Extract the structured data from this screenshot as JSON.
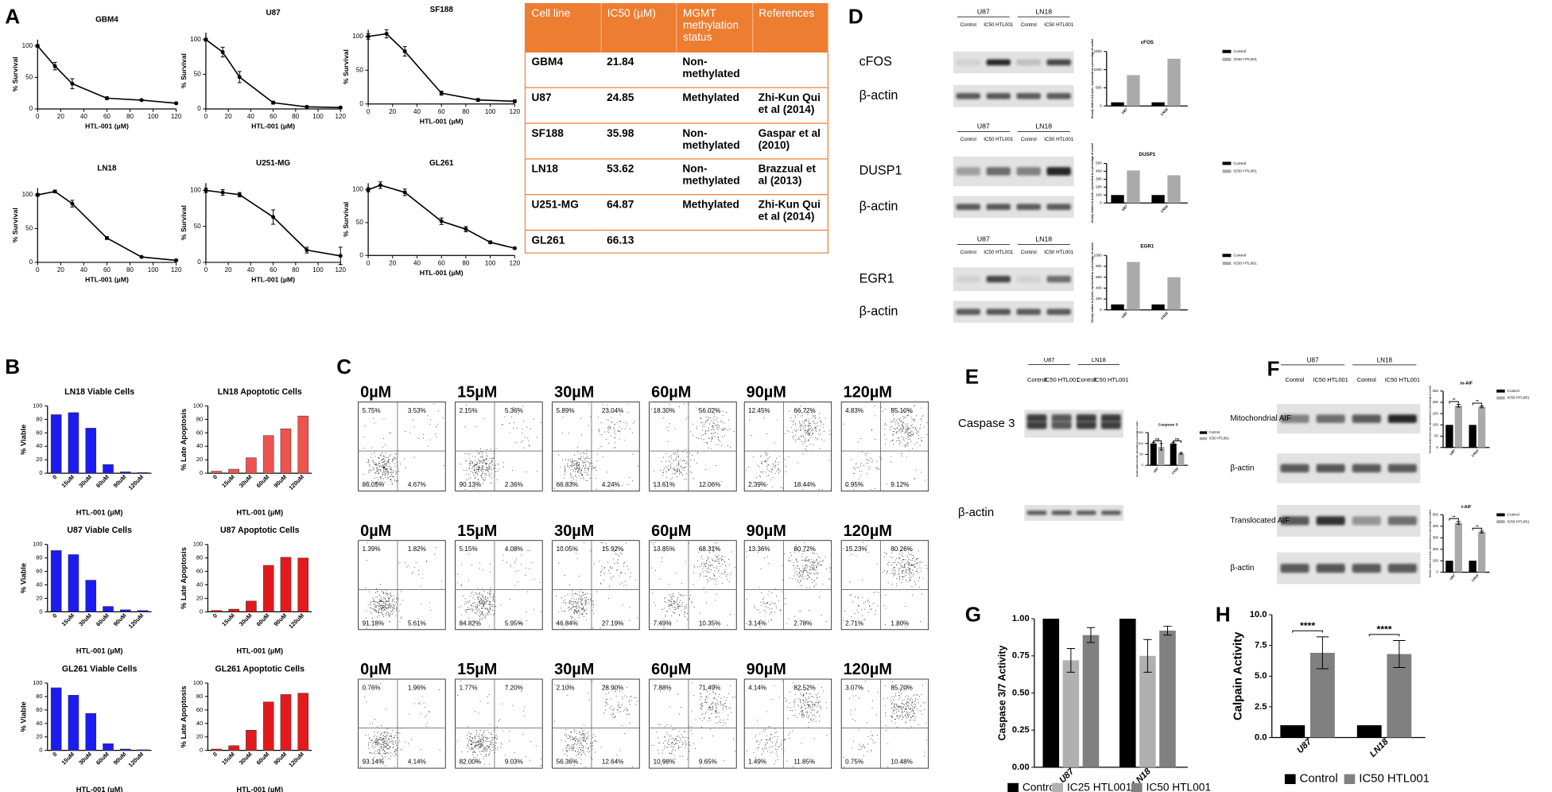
{
  "chart_data": [
    {
      "type": "line",
      "title": "GBM4",
      "x": [
        0,
        15,
        30,
        60,
        90,
        120
      ],
      "values": [
        100,
        68,
        40,
        17,
        14,
        9
      ],
      "errors": [
        2,
        6,
        8,
        2,
        1,
        1
      ],
      "xlabel": "HTL-001 (µM)",
      "ylabel": "% Survival",
      "xlim": [
        0,
        120
      ],
      "ylim": [
        0,
        110
      ],
      "xticks": [
        0,
        20,
        40,
        60,
        80,
        100,
        120
      ],
      "yticks": [
        0,
        50,
        100
      ],
      "color": "#000000"
    },
    {
      "type": "line",
      "title": "U87",
      "x": [
        0,
        15,
        30,
        60,
        90,
        120
      ],
      "values": [
        100,
        82,
        46,
        9,
        3,
        2
      ],
      "errors": [
        2,
        7,
        8,
        2,
        1,
        1
      ],
      "xlabel": "HTL-001 (µM)",
      "ylabel": "% Survival",
      "xlim": [
        0,
        120
      ],
      "ylim": [
        0,
        110
      ],
      "xticks": [
        0,
        20,
        40,
        60,
        80,
        100,
        120
      ],
      "yticks": [
        0,
        50,
        100
      ],
      "color": "#000000"
    },
    {
      "type": "line",
      "title": "SF188",
      "x": [
        0,
        15,
        30,
        60,
        90,
        120
      ],
      "values": [
        100,
        104,
        78,
        16,
        6,
        4
      ],
      "errors": [
        4,
        6,
        7,
        3,
        2,
        2
      ],
      "xlabel": "HTL-001 (µM)",
      "ylabel": "% Survival",
      "xlim": [
        0,
        120
      ],
      "ylim": [
        0,
        110
      ],
      "xticks": [
        0,
        20,
        40,
        60,
        80,
        100,
        120
      ],
      "yticks": [
        0,
        50,
        100
      ],
      "color": "#000000"
    },
    {
      "type": "line",
      "title": "LN18",
      "x": [
        0,
        15,
        30,
        60,
        90,
        120
      ],
      "values": [
        100,
        105,
        87,
        36,
        8,
        3
      ],
      "errors": [
        2,
        2,
        5,
        2,
        1,
        1
      ],
      "xlabel": "HTL-001 (µM)",
      "ylabel": "% Survival",
      "xlim": [
        0,
        120
      ],
      "ylim": [
        0,
        110
      ],
      "xticks": [
        0,
        20,
        40,
        60,
        80,
        100,
        120
      ],
      "yticks": [
        0,
        50,
        100
      ],
      "color": "#000000"
    },
    {
      "type": "line",
      "title": "U251-MG",
      "x": [
        0,
        15,
        30,
        60,
        90,
        120
      ],
      "values": [
        100,
        97,
        94,
        63,
        17,
        9
      ],
      "errors": [
        3,
        4,
        3,
        10,
        4,
        12
      ],
      "xlabel": "HTL-001 (µM)",
      "ylabel": "% Survival",
      "xlim": [
        0,
        120
      ],
      "ylim": [
        0,
        110
      ],
      "xticks": [
        0,
        20,
        40,
        60,
        80,
        100,
        120
      ],
      "yticks": [
        0,
        50,
        100
      ],
      "color": "#000000"
    },
    {
      "type": "line",
      "title": "GL261",
      "x": [
        0,
        10,
        30,
        60,
        80,
        100,
        120
      ],
      "values": [
        100,
        107,
        96,
        52,
        40,
        20,
        11
      ],
      "errors": [
        3,
        5,
        5,
        5,
        4,
        2,
        1
      ],
      "xlabel": "HTL-001 (µM)",
      "ylabel": "% Survival",
      "xlim": [
        0,
        120
      ],
      "ylim": [
        0,
        110
      ],
      "xticks": [
        0,
        20,
        40,
        60,
        80,
        100,
        120
      ],
      "yticks": [
        0,
        50,
        100
      ],
      "color": "#000000"
    },
    {
      "type": "bar",
      "title": "LN18 Viable Cells",
      "categories": [
        "0",
        "15uM",
        "30uM",
        "60uM",
        "90uM",
        "120uM"
      ],
      "values": [
        87,
        90,
        67,
        13,
        2,
        1
      ],
      "color": "#1c1cf0",
      "xlabel": "HTL-001 (µM)",
      "ylabel": "% Viable",
      "ylim": [
        0,
        100
      ],
      "yticks": [
        0,
        20,
        40,
        60,
        80,
        100
      ]
    },
    {
      "type": "bar",
      "title": "LN18  Apoptotic Cells",
      "categories": [
        "0",
        "15uM",
        "30uM",
        "60uM",
        "90uM",
        "120uM"
      ],
      "values": [
        3,
        6,
        23,
        56,
        66,
        85
      ],
      "color": "#ef5350",
      "xlabel": "HTL-001 (µM)",
      "ylabel": "% Late Apoptosis",
      "ylim": [
        0,
        100
      ],
      "yticks": [
        0,
        20,
        40,
        60,
        80,
        100
      ]
    },
    {
      "type": "bar",
      "title": "U87 Viable Cells",
      "categories": [
        "0",
        "15uM",
        "30uM",
        "60uM",
        "90uM",
        "120uM"
      ],
      "values": [
        91,
        85,
        47,
        8,
        3,
        2
      ],
      "color": "#1c1cf0",
      "xlabel": "HTL-001 (µM)",
      "ylabel": "% Viable",
      "ylim": [
        0,
        100
      ],
      "yticks": [
        0,
        20,
        40,
        60,
        80,
        100
      ]
    },
    {
      "type": "bar",
      "title": "U87 Apoptotic Cells",
      "categories": [
        "0",
        "15uM",
        "30uM",
        "60uM",
        "90uM",
        "120uM"
      ],
      "values": [
        2,
        4,
        16,
        69,
        81,
        80
      ],
      "color": "#e31a1c",
      "xlabel": "HTL-001 (µM)",
      "ylabel": "% Late Apoptosis",
      "ylim": [
        0,
        100
      ],
      "yticks": [
        0,
        20,
        40,
        60,
        80,
        100
      ]
    },
    {
      "type": "bar",
      "title": "GL261 Viable Cells",
      "categories": [
        "0",
        "15uM",
        "30uM",
        "60uM",
        "90uM",
        "120uM"
      ],
      "values": [
        93,
        82,
        55,
        10,
        2,
        1
      ],
      "color": "#1c1cf0",
      "xlabel": "HTL-001 (µM)",
      "ylabel": "% Viable",
      "ylim": [
        0,
        100
      ],
      "yticks": [
        0,
        20,
        40,
        60,
        80,
        100
      ]
    },
    {
      "type": "bar",
      "title": "GL261 Apoptotic Cells",
      "categories": [
        "0",
        "15uM",
        "30uM",
        "60uM",
        "90uM",
        "120uM"
      ],
      "values": [
        2,
        7,
        30,
        72,
        83,
        85
      ],
      "color": "#e31a1c",
      "xlabel": "HTL-001 (µM)",
      "ylabel": "% Late Apoptosis",
      "ylim": [
        0,
        100
      ],
      "yticks": [
        0,
        20,
        40,
        60,
        80,
        100
      ]
    },
    {
      "type": "bar",
      "title": "cFOS",
      "categories": [
        "U87",
        "LN18"
      ],
      "series": [
        {
          "name": "Control",
          "color": "#000000",
          "values": [
            100,
            100
          ]
        },
        {
          "name": "IC50 HTL001",
          "color": "#aaaaaa",
          "values": [
            850,
            1300
          ]
        }
      ],
      "ylabel": "Density relative to β-actin, represented as a percentage of control",
      "ylim": [
        0,
        1500
      ],
      "yticks": [
        0,
        500,
        1000,
        1500
      ],
      "legend": "right"
    },
    {
      "type": "bar",
      "title": "DUSP1",
      "categories": [
        "U87",
        "LN18"
      ],
      "series": [
        {
          "name": "Control",
          "color": "#000000",
          "values": [
            100,
            100
          ]
        },
        {
          "name": "IC50 HTL001",
          "color": "#aaaaaa",
          "values": [
            410,
            350
          ]
        }
      ],
      "ylabel": "Density relative to β-actin, represented as a percentage of control",
      "ylim": [
        0,
        500
      ],
      "yticks": [
        0,
        100,
        200,
        300,
        400,
        500
      ],
      "legend": "right"
    },
    {
      "type": "bar",
      "title": "EGR1",
      "categories": [
        "U87",
        "LN18"
      ],
      "series": [
        {
          "name": "Control",
          "color": "#000000",
          "values": [
            100,
            100
          ]
        },
        {
          "name": "IC50 HTL001",
          "color": "#aaaaaa",
          "values": [
            880,
            600
          ]
        }
      ],
      "ylabel": "Density relative to β-actin, represented as a percentage of control",
      "ylim": [
        0,
        1000
      ],
      "yticks": [
        0,
        200,
        400,
        600,
        800,
        1000
      ],
      "legend": "right"
    },
    {
      "type": "bar",
      "title": "Caspase 3",
      "categories": [
        "U87",
        "LN18"
      ],
      "series": [
        {
          "name": "Control",
          "color": "#000000",
          "values": [
            100,
            100
          ],
          "errors": [
            5,
            5
          ]
        },
        {
          "name": "IC50 HTL001",
          "color": "#aaaaaa",
          "values": [
            85,
            55
          ],
          "errors": [
            15,
            4
          ]
        }
      ],
      "ylabel": "Density relative to β-actin, represented as a percentage of control",
      "ylim": [
        0,
        150
      ],
      "yticks": [
        0,
        50,
        100,
        150
      ],
      "annotations": [
        "ns",
        "ns"
      ],
      "legend": "right"
    },
    {
      "type": "bar",
      "title": "m-AIF",
      "categories": [
        "U87",
        "LN18"
      ],
      "series": [
        {
          "name": "Control",
          "color": "#000000",
          "values": [
            100,
            100
          ]
        },
        {
          "name": "IC50 HTL001",
          "color": "#aaaaaa",
          "values": [
            185,
            180
          ],
          "errors": [
            6,
            4
          ]
        }
      ],
      "ylabel": "Density relative to β-actin, represented as a percentage of control",
      "ylim": [
        0,
        250
      ],
      "yticks": [
        0,
        50,
        100,
        150,
        200,
        250
      ],
      "annotations": [
        "**",
        "**"
      ],
      "legend": "right"
    },
    {
      "type": "bar",
      "title": "t-AIF",
      "categories": [
        "U87",
        "LN18"
      ],
      "series": [
        {
          "name": "Control",
          "color": "#000000",
          "values": [
            100,
            100
          ]
        },
        {
          "name": "IC50 HTL001",
          "color": "#aaaaaa",
          "values": [
            430,
            350
          ],
          "errors": [
            12,
            8
          ]
        }
      ],
      "ylabel": "Density relative to β-actin, represented as a percentage of control",
      "ylim": [
        0,
        500
      ],
      "yticks": [
        0,
        100,
        200,
        300,
        400,
        500
      ],
      "annotations": [
        "**",
        "**"
      ],
      "legend": "right"
    },
    {
      "type": "bar",
      "categories": [
        "U87",
        "LN18"
      ],
      "series": [
        {
          "name": "Control",
          "color": "#000000",
          "values": [
            1.0,
            1.0
          ]
        },
        {
          "name": "IC25 HTL001",
          "color": "#b0b0b0",
          "values": [
            0.72,
            0.75
          ],
          "errors": [
            0.08,
            0.11
          ]
        },
        {
          "name": "IC50 HTL001",
          "color": "#808080",
          "values": [
            0.89,
            0.92
          ],
          "errors": [
            0.05,
            0.03
          ]
        }
      ],
      "ylabel": "Caspase 3/7 Activity",
      "ylim": [
        0,
        1
      ],
      "yticks": [
        {
          "value": 0,
          "label": "0.00"
        },
        {
          "value": 0.25,
          "label": "0.25"
        },
        {
          "value": 0.5,
          "label": "0.50"
        },
        {
          "value": 0.75,
          "label": "0.75"
        },
        {
          "value": 1,
          "label": "1.00"
        }
      ],
      "legend": "bottom"
    },
    {
      "type": "bar",
      "categories": [
        "U87",
        "LN18"
      ],
      "series": [
        {
          "name": "Control",
          "color": "#000000",
          "values": [
            1.0,
            1.0
          ]
        },
        {
          "name": "IC50 HTL001",
          "color": "#808080",
          "values": [
            6.9,
            6.8
          ],
          "errors": [
            1.3,
            1.1
          ]
        }
      ],
      "ylabel": "Calpain Activity",
      "ylim": [
        0,
        10
      ],
      "yticks": [
        {
          "value": 0,
          "label": "0.0"
        },
        2.5,
        {
          "value": 5,
          "label": "5.0"
        },
        7.5,
        {
          "value": 10,
          "label": "10.0"
        }
      ],
      "annotations": [
        "****",
        "****"
      ],
      "legend": "bottom"
    }
  ],
  "panel_labels": [
    "A",
    "B",
    "C",
    "D",
    "E",
    "F",
    "G",
    "H"
  ],
  "table": {
    "header": [
      "Cell line",
      "IC50 (µM)",
      "MGMT methylation status",
      "References"
    ],
    "rows": [
      [
        "GBM4",
        "21.84",
        "Non-methylated"
      ],
      [
        "U87",
        "24.85",
        "Methylated",
        "Zhi-Kun Qui et al (2014)"
      ],
      [
        "SF188",
        "35.98",
        "Non-methylated",
        "Gaspar et al (2010)"
      ],
      [
        "LN18",
        "53.62",
        "Non-methylated",
        "Brazzual et al (2013)"
      ],
      [
        "U251-MG",
        "64.87",
        "Methylated",
        "Zhi-Kun Qui et al (2014)"
      ],
      [
        "GL261",
        "66.13"
      ]
    ]
  },
  "flow": {
    "concentrations": [
      "0µM",
      "15µM",
      "30µM",
      "60µM",
      "90µM",
      "120µM"
    ],
    "quadrants": [
      [
        [
          "5.75%",
          "3.53%",
          "86.05%",
          "4.67%"
        ],
        [
          "2.15%",
          "5.36%",
          "90.13%",
          "2.36%"
        ],
        [
          "5.89%",
          "23.04%",
          "66.83%",
          "4.24%"
        ],
        [
          "18.30%",
          "56.02%",
          "13.61%",
          "12.06%"
        ],
        [
          "12.45%",
          "66.72%",
          "2.39%",
          "18.44%"
        ],
        [
          "4.83%",
          "85.10%",
          "0.95%",
          "9.12%"
        ]
      ],
      [
        [
          "1.39%",
          "1.82%",
          "91.18%",
          "5.61%"
        ],
        [
          "5.15%",
          "4.08%",
          "84.82%",
          "5.95%"
        ],
        [
          "10.05%",
          "15.92%",
          "46.84%",
          "27.19%"
        ],
        [
          "13.85%",
          "68.31%",
          "7.49%",
          "10.35%"
        ],
        [
          "13.36%",
          "80.72%",
          "3.14%",
          "2.78%"
        ],
        [
          "15.23%",
          "80.26%",
          "2.71%",
          "1.80%"
        ]
      ],
      [
        [
          "0.76%",
          "1.96%",
          "93.14%",
          "4.14%"
        ],
        [
          "1.77%",
          "7.20%",
          "82.00%",
          "9.03%"
        ],
        [
          "2.10%",
          "28.90%",
          "56.36%",
          "12.64%"
        ],
        [
          "7.88%",
          "71.49%",
          "10.98%",
          "9.65%"
        ],
        [
          "4.14%",
          "82.52%",
          "1.49%",
          "11.85%"
        ],
        [
          "3.07%",
          "85.70%",
          "0.75%",
          "10.48%"
        ]
      ]
    ]
  },
  "blots": [
    {
      "groups": [
        "U87",
        "LN18"
      ],
      "lanes": [
        "Control",
        "IC50 HTL001",
        "Control",
        "IC50 HTL001"
      ],
      "rows": [
        "cFOS",
        "β-actin"
      ]
    },
    {
      "groups": [
        "U87",
        "LN18"
      ],
      "lanes": [
        "Control",
        "IC50 HTL001",
        "Control",
        "IC50 HTL001"
      ],
      "rows": [
        "DUSP1",
        "β-actin"
      ]
    },
    {
      "groups": [
        "U87",
        "LN18"
      ],
      "lanes": [
        "Control",
        "IC50 HTL001",
        "Control",
        "IC50 HTL001"
      ],
      "rows": [
        "EGR1",
        "β-actin"
      ]
    },
    {
      "groups": [
        "U87",
        "LN18"
      ],
      "lanes": [
        "Control",
        "IC50 HTL001",
        "Control",
        "IC50 HTL001"
      ],
      "rows": [
        "Caspase 3",
        "β-actin"
      ]
    },
    {
      "groups": [
        "U87",
        "LN18"
      ],
      "lanes": [
        "Control",
        "IC50 HTL001",
        "Control",
        "IC50 HTL001"
      ],
      "rows": [
        "Mitochondrial AIF",
        "β-actin",
        "Translocated AIF",
        "β-actin"
      ]
    }
  ]
}
